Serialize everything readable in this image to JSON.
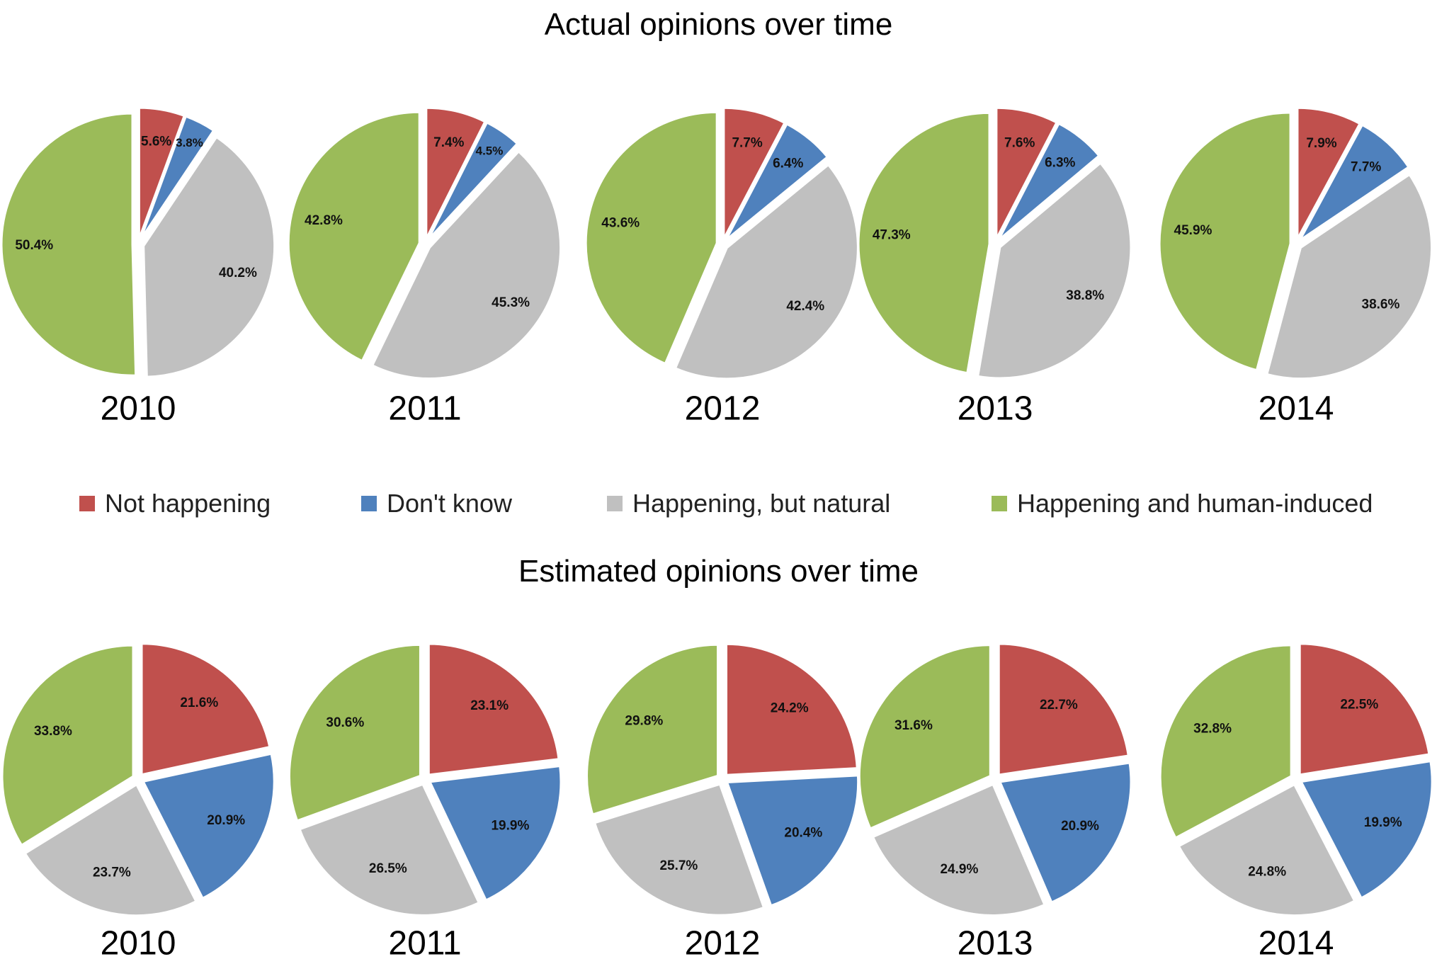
{
  "titles": {
    "actual": "Actual opinions over time",
    "estimated": "Estimated opinions over time"
  },
  "legend": [
    {
      "label": "Not happening",
      "color": "#c0504d"
    },
    {
      "label": "Don't know",
      "color": "#4f81bd"
    },
    {
      "label": "Happening, but natural",
      "color": "#c0c0c0"
    },
    {
      "label": "Happening and human-induced",
      "color": "#9bbb59"
    }
  ],
  "chart_data": [
    {
      "type": "pie",
      "title": "Actual opinions over time",
      "categories": [
        "Not happening",
        "Don't know",
        "Happening, but natural",
        "Happening and human-induced"
      ],
      "colors": [
        "#c0504d",
        "#4f81bd",
        "#c0c0c0",
        "#9bbb59"
      ],
      "pies": [
        {
          "label": "2010",
          "values": [
            5.6,
            3.8,
            40.2,
            50.4
          ],
          "value_labels": [
            "5.6%",
            "3.8%",
            "40.2%",
            "50.4%"
          ]
        },
        {
          "label": "2011",
          "values": [
            7.4,
            4.5,
            45.3,
            42.8
          ],
          "value_labels": [
            "7.4%",
            "4.5%",
            "45.3%",
            "42.8%"
          ]
        },
        {
          "label": "2012",
          "values": [
            7.7,
            6.4,
            42.4,
            43.6
          ],
          "value_labels": [
            "7.7%",
            "6.4%",
            "42.4%",
            "43.6%"
          ]
        },
        {
          "label": "2013",
          "values": [
            7.6,
            6.3,
            38.8,
            47.3
          ],
          "value_labels": [
            "7.6%",
            "6.3%",
            "38.8%",
            "47.3%"
          ]
        },
        {
          "label": "2014",
          "values": [
            7.9,
            7.7,
            38.6,
            45.9
          ],
          "value_labels": [
            "7.9%",
            "7.7%",
            "38.6%",
            "45.9%"
          ]
        }
      ]
    },
    {
      "type": "pie",
      "title": "Estimated opinions over time",
      "categories": [
        "Not happening",
        "Don't know",
        "Happening, but natural",
        "Happening and human-induced"
      ],
      "colors": [
        "#c0504d",
        "#4f81bd",
        "#c0c0c0",
        "#9bbb59"
      ],
      "pies": [
        {
          "label": "2010",
          "values": [
            21.6,
            20.9,
            23.7,
            33.8
          ],
          "value_labels": [
            "21.6%",
            "20.9%",
            "23.7%",
            "33.8%"
          ]
        },
        {
          "label": "2011",
          "values": [
            23.1,
            19.9,
            26.5,
            30.6
          ],
          "value_labels": [
            "23.1%",
            "19.9%",
            "26.5%",
            "30.6%"
          ]
        },
        {
          "label": "2012",
          "values": [
            24.2,
            20.4,
            25.7,
            29.8
          ],
          "value_labels": [
            "24.2%",
            "20.4%",
            "25.7%",
            "29.8%"
          ]
        },
        {
          "label": "2013",
          "values": [
            22.7,
            20.9,
            24.9,
            31.6
          ],
          "value_labels": [
            "22.7%",
            "20.9%",
            "24.9%",
            "31.6%"
          ]
        },
        {
          "label": "2014",
          "values": [
            22.5,
            19.9,
            24.8,
            32.8
          ],
          "value_labels": [
            "22.5%",
            "19.9%",
            "24.8%",
            "32.8%"
          ]
        }
      ]
    }
  ]
}
